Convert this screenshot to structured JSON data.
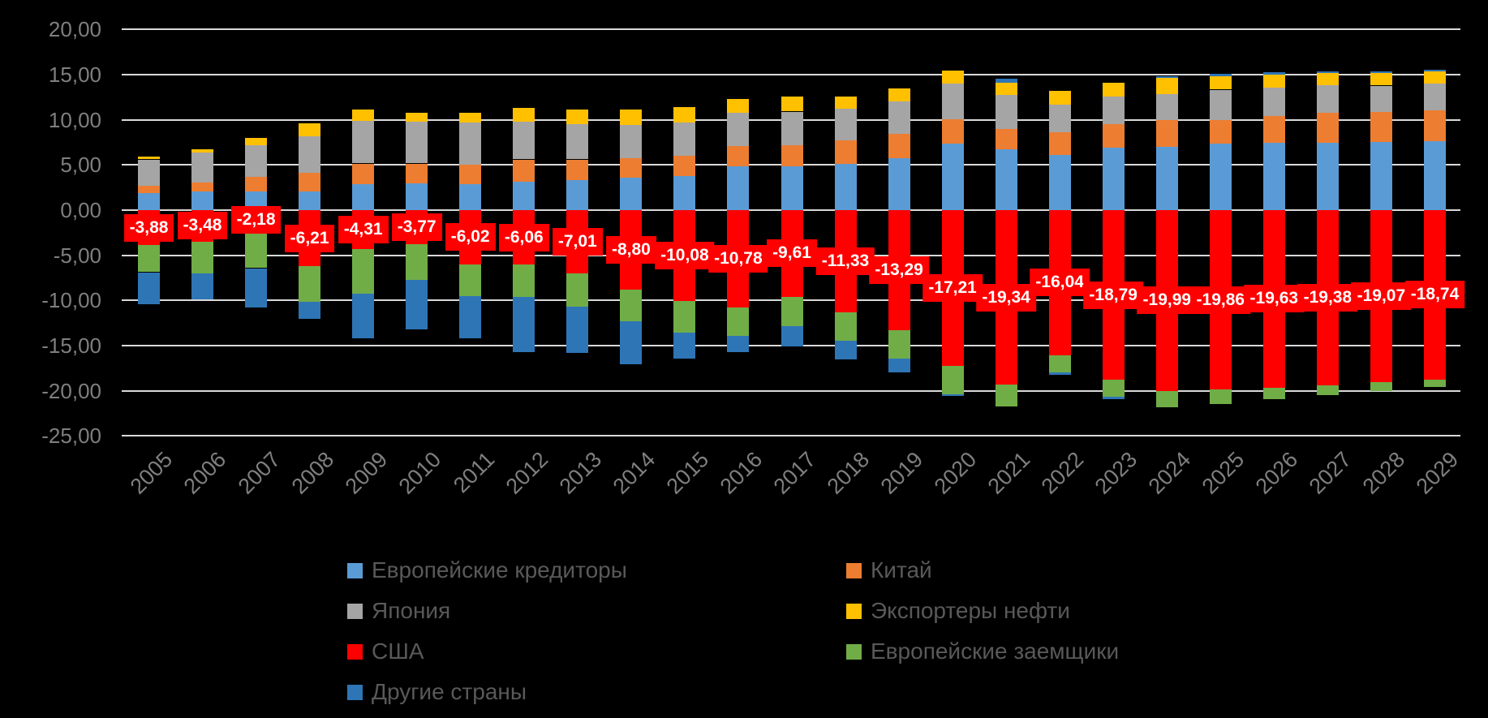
{
  "chart_data": {
    "type": "bar",
    "stacked": true,
    "categories": [
      "2005",
      "2006",
      "2007",
      "2008",
      "2009",
      "2010",
      "2011",
      "2012",
      "2013",
      "2014",
      "2015",
      "2016",
      "2017",
      "2018",
      "2019",
      "2020",
      "2021",
      "2022",
      "2023",
      "2024",
      "2025",
      "2026",
      "2027",
      "2028",
      "2029"
    ],
    "series": [
      {
        "name": "Европейские кредиторы",
        "color": "#5B9BD5",
        "values": [
          1.85,
          2.05,
          2.05,
          2.05,
          2.85,
          2.95,
          2.85,
          3.1,
          3.3,
          3.6,
          3.8,
          4.8,
          4.85,
          5.1,
          5.7,
          7.33,
          6.73,
          6.13,
          6.88,
          7.03,
          7.33,
          7.42,
          7.48,
          7.57,
          7.63
        ]
      },
      {
        "name": "Китай",
        "color": "#ED7D31",
        "values": [
          0.85,
          1.0,
          1.6,
          2.1,
          2.3,
          2.2,
          2.2,
          2.5,
          2.3,
          2.1,
          2.2,
          2.3,
          2.35,
          2.6,
          2.7,
          2.75,
          2.25,
          2.46,
          2.6,
          2.9,
          2.63,
          2.96,
          3.3,
          3.3,
          3.4
        ]
      },
      {
        "name": "Япония",
        "color": "#A5A5A5",
        "values": [
          2.9,
          3.35,
          3.55,
          4.0,
          4.75,
          4.65,
          4.6,
          4.2,
          3.9,
          3.7,
          3.7,
          3.7,
          3.7,
          3.5,
          3.6,
          3.9,
          3.74,
          3.08,
          3.08,
          2.93,
          3.36,
          3.14,
          3.0,
          2.9,
          3.0
        ]
      },
      {
        "name": "Экспортеры нефти",
        "color": "#FFC000",
        "values": [
          0.3,
          0.3,
          0.8,
          1.45,
          1.2,
          1.0,
          1.15,
          1.55,
          1.6,
          1.7,
          1.7,
          1.5,
          1.7,
          1.4,
          1.5,
          1.48,
          1.4,
          1.5,
          1.5,
          1.74,
          1.47,
          1.44,
          1.4,
          1.4,
          1.3
        ]
      },
      {
        "name": "США",
        "color": "#FF0000",
        "values": [
          -3.88,
          -3.48,
          -2.18,
          -6.21,
          -4.31,
          -3.77,
          -6.02,
          -6.06,
          -7.01,
          -8.8,
          -10.08,
          -10.78,
          -9.61,
          -11.33,
          -13.29,
          -17.21,
          -19.34,
          -16.04,
          -18.79,
          -19.99,
          -19.86,
          -19.63,
          -19.38,
          -19.07,
          -18.74
        ],
        "data_labels": [
          "-3,88",
          "-3,48",
          "-2,18",
          "-6,21",
          "-4,31",
          "-3,77",
          "-6,02",
          "-6,06",
          "-7,01",
          "-8,80",
          "-10,08",
          "-10,78",
          "-9,61",
          "-11,33",
          "-13,29",
          "-17,21",
          "-19,34",
          "-16,04",
          "-18,79",
          "-19,99",
          "-19,86",
          "-19,63",
          "-19,38",
          "-19,07",
          "-18,74"
        ]
      },
      {
        "name": "Европейские заемщики",
        "color": "#70AD47",
        "values": [
          -3.0,
          -3.55,
          -4.25,
          -3.96,
          -4.91,
          -3.95,
          -3.5,
          -3.52,
          -3.7,
          -3.53,
          -3.45,
          -3.14,
          -3.26,
          -3.12,
          -3.11,
          -3.14,
          -2.36,
          -1.96,
          -1.9,
          -1.8,
          -1.65,
          -1.3,
          -1.1,
          -1.0,
          -0.85
        ]
      },
      {
        "name": "Другие страны",
        "color": "#2E75B6",
        "values": [
          -3.5,
          -2.9,
          -4.35,
          -1.86,
          -5.0,
          -5.45,
          -4.7,
          -6.13,
          -5.1,
          -4.73,
          -2.87,
          -1.8,
          -2.24,
          -2.1,
          -1.55,
          -0.25,
          0.4,
          -0.2,
          -0.2,
          0.23,
          0.25,
          0.3,
          0.2,
          0.2,
          0.2
        ]
      }
    ],
    "y_axis": {
      "min": -25,
      "max": 20,
      "step": 5,
      "tick_labels": [
        "20,00",
        "15,00",
        "10,00",
        "5,00",
        "0,00",
        "-5,00",
        "-10,00",
        "-15,00",
        "-20,00",
        "-25,00"
      ]
    },
    "legend": {
      "position": "bottom",
      "columns": [
        [
          "Европейские кредиторы",
          "Япония",
          "США",
          "Другие страны"
        ],
        [
          "Китай",
          "Экспортеры нефти",
          "Европейские заемщики"
        ]
      ]
    },
    "background": "#000000",
    "gridline_color": "#D9D9D9",
    "axis_text_color": "#7F7F7F",
    "legend_text_color": "#595959",
    "data_label_text_color": "#FFFFFF"
  }
}
